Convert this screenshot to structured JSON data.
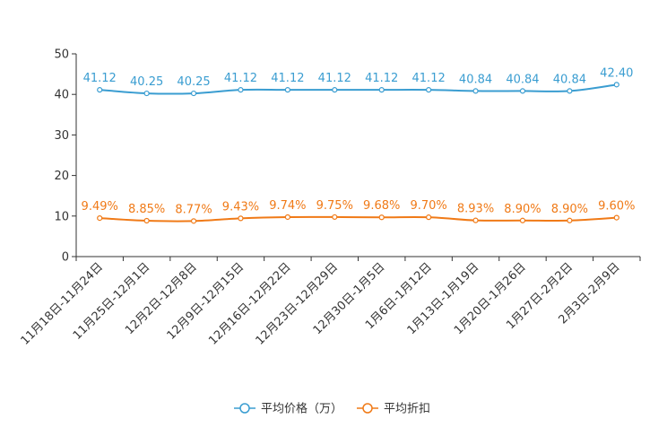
{
  "chart_data": {
    "type": "line",
    "title": "",
    "xlabel": "",
    "ylabel": "",
    "ylim": [
      0,
      50
    ],
    "yticks": [
      0,
      10,
      20,
      30,
      40,
      50
    ],
    "grid": false,
    "legend_position": "bottom-center",
    "categories": [
      "11月18日-11月24日",
      "11月25日-12月1日",
      "12月2日-12月8日",
      "12月9日-12月15日",
      "12月16日-12月22日",
      "12月23日-12月29日",
      "12月30日-1月5日",
      "1月6日-1月12日",
      "1月13日-1月19日",
      "1月20日-1月26日",
      "1月27日-2月2日",
      "2月3日-2月9日"
    ],
    "series": [
      {
        "name": "平均价格（万）",
        "color": "#3a9dd1",
        "values": [
          41.12,
          40.25,
          40.25,
          41.12,
          41.12,
          41.12,
          41.12,
          41.12,
          40.84,
          40.84,
          40.84,
          42.4
        ],
        "labels": [
          "41.12",
          "40.25",
          "40.25",
          "41.12",
          "41.12",
          "41.12",
          "41.12",
          "41.12",
          "40.84",
          "40.84",
          "40.84",
          "42.40"
        ]
      },
      {
        "name": "平均折扣",
        "color": "#f07a17",
        "values": [
          9.49,
          8.85,
          8.77,
          9.43,
          9.74,
          9.75,
          9.68,
          9.7,
          8.93,
          8.9,
          8.9,
          9.6
        ],
        "labels": [
          "9.49%",
          "8.85%",
          "8.77%",
          "9.43%",
          "9.74%",
          "9.75%",
          "9.68%",
          "9.70%",
          "8.93%",
          "8.90%",
          "8.90%",
          "9.60%"
        ]
      }
    ]
  }
}
